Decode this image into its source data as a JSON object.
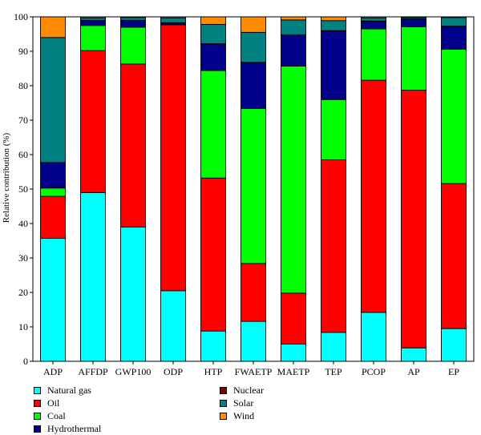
{
  "chart_data": {
    "type": "bar",
    "stacked": true,
    "categories": [
      "ADP",
      "AFFDP",
      "GWP100",
      "ODP",
      "HTP",
      "FWAETP",
      "MAETP",
      "TEP",
      "PCOP",
      "AP",
      "EP"
    ],
    "ylabel": "Relative contribution (%)",
    "xlabel": "",
    "ylim": [
      0,
      100
    ],
    "yticks": [
      0,
      10,
      20,
      30,
      40,
      50,
      60,
      70,
      80,
      90,
      100
    ],
    "grid": false,
    "legend_position": "bottom-left",
    "series": [
      {
        "name": "Natural gas",
        "color": "#00ffff",
        "values": [
          35.7,
          49.0,
          39.0,
          20.5,
          8.8,
          11.6,
          5.0,
          8.4,
          14.2,
          3.9,
          9.5
        ]
      },
      {
        "name": "Oil",
        "color": "#ff0000",
        "values": [
          12.2,
          41.2,
          47.3,
          77.2,
          44.4,
          16.8,
          14.8,
          50.1,
          67.4,
          74.8,
          42.1
        ]
      },
      {
        "name": "Coal",
        "color": "#00ff00",
        "values": [
          2.4,
          7.3,
          10.7,
          0.0,
          31.2,
          45.0,
          65.9,
          17.5,
          14.9,
          18.4,
          39.0
        ]
      },
      {
        "name": "Hydrothermal",
        "color": "#00008b",
        "values": [
          7.3,
          1.4,
          1.9,
          0.5,
          7.7,
          13.3,
          9.0,
          19.9,
          2.2,
          2.2,
          6.6
        ]
      },
      {
        "name": "Nuclear",
        "color": "#800000",
        "values": [
          0.1,
          0.1,
          0.1,
          0.1,
          0.1,
          0.1,
          0.1,
          0.1,
          0.1,
          0.1,
          0.1
        ]
      },
      {
        "name": "Solar",
        "color": "#008080",
        "values": [
          36.3,
          0.7,
          0.8,
          1.4,
          5.6,
          8.7,
          4.3,
          2.9,
          0.9,
          0.4,
          2.5
        ]
      },
      {
        "name": "Wind",
        "color": "#ff8c00",
        "values": [
          6.0,
          0.3,
          0.2,
          0.3,
          2.2,
          4.5,
          0.9,
          1.1,
          0.3,
          0.2,
          0.2
        ]
      }
    ]
  }
}
